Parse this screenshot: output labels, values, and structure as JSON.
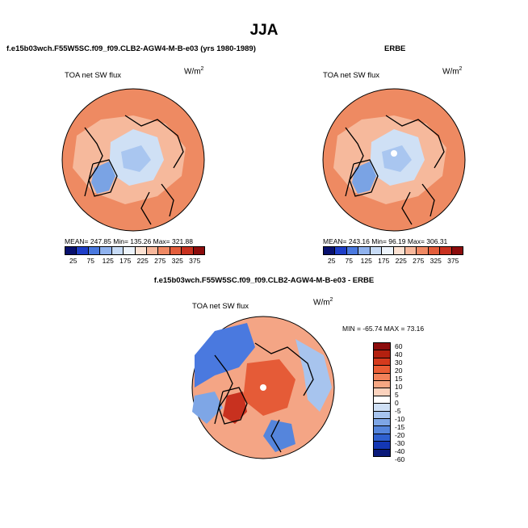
{
  "page_title": "JJA",
  "panels": [
    {
      "title": "f.e15b03wch.F55W5SC.f09_f09.CLB2-AGW4-M-B-e03 (yrs 1980-1989)",
      "variable": "TOA net SW flux",
      "units": "W/m",
      "units_exp": "2",
      "stats": "MEAN= 247.85   Min= 135.26   Max= 321.88",
      "colorbar_labels": [
        "25",
        "75",
        "125",
        "175",
        "225",
        "275",
        "325",
        "375"
      ]
    },
    {
      "title": "ERBE",
      "variable": "TOA net SW flux",
      "units": "W/m",
      "units_exp": "2",
      "stats": "MEAN= 243.16   Min= 96.19   Max= 306.31",
      "colorbar_labels": [
        "25",
        "75",
        "125",
        "175",
        "225",
        "275",
        "325",
        "375"
      ]
    },
    {
      "title": "f.e15b03wch.F55W5SC.f09_f09.CLB2-AGW4-M-B-e03 - ERBE",
      "variable": "TOA net SW flux",
      "units": "W/m",
      "units_exp": "2",
      "stats": "MIN = -65.74  MAX =  73.16",
      "colorbar_labels": [
        "60",
        "40",
        "30",
        "20",
        "15",
        "10",
        "5",
        "0",
        "-5",
        "-10",
        "-15",
        "-20",
        "-30",
        "-40",
        "-60"
      ]
    }
  ],
  "colors": {
    "abs_scale": [
      "#08106e",
      "#1e3ec8",
      "#4a79df",
      "#8fb2ee",
      "#c7dbf6",
      "#ecf3fb",
      "#fbe1d2",
      "#f7b79b",
      "#f08963",
      "#e35d3b",
      "#c8311f",
      "#8c0c0c"
    ],
    "diff_scale": [
      "#8c0c0c",
      "#b3200f",
      "#d53a1d",
      "#ea5d35",
      "#f2825a",
      "#f6a783",
      "#fbd2bd",
      "#ffffff",
      "#cfe0f5",
      "#a7c4ee",
      "#7ea6e6",
      "#5585dc",
      "#2f60cf",
      "#1437b4",
      "#0a1a7a"
    ],
    "ocean_abs": "#ee8a62",
    "land_abs": "#f6b99c",
    "arctic_abs": "#cfe0f5",
    "ice_abs": "#7aa3e4",
    "diff_base": "#f4a585",
    "diff_neg": "#4a79df",
    "diff_pos": "#e55b37"
  }
}
